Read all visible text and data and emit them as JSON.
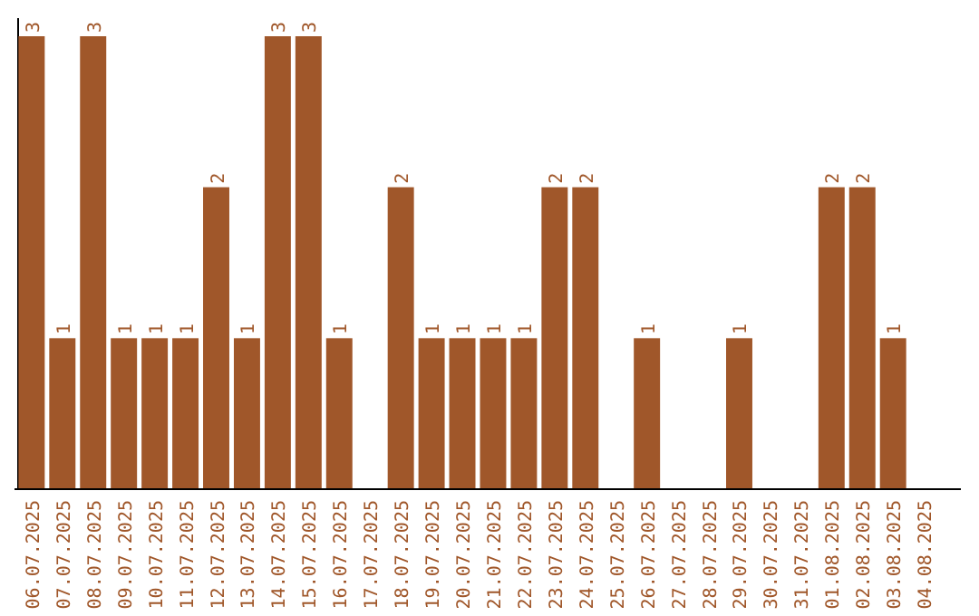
{
  "chart_data": {
    "type": "bar",
    "categories": [
      "06.07.2025",
      "07.07.2025",
      "08.07.2025",
      "09.07.2025",
      "10.07.2025",
      "11.07.2025",
      "12.07.2025",
      "13.07.2025",
      "14.07.2025",
      "15.07.2025",
      "16.07.2025",
      "17.07.2025",
      "18.07.2025",
      "19.07.2025",
      "20.07.2025",
      "21.07.2025",
      "22.07.2025",
      "23.07.2025",
      "24.07.2025",
      "25.07.2025",
      "26.07.2025",
      "27.07.2025",
      "28.07.2025",
      "29.07.2025",
      "30.07.2025",
      "31.07.2025",
      "01.08.2025",
      "02.08.2025",
      "03.08.2025",
      "04.08.2025"
    ],
    "values": [
      3,
      1,
      3,
      1,
      1,
      1,
      2,
      1,
      3,
      3,
      1,
      0,
      2,
      1,
      1,
      1,
      1,
      2,
      2,
      0,
      1,
      0,
      0,
      1,
      0,
      0,
      2,
      2,
      1,
      0
    ],
    "value_labels": [
      "3",
      "1",
      "3",
      "1",
      "1",
      "1",
      "2",
      "1",
      "3",
      "3",
      "1",
      null,
      "2",
      "1",
      "1",
      "1",
      "1",
      "2",
      "2",
      null,
      "1",
      null,
      null,
      "1",
      null,
      null,
      "2",
      "2",
      "1",
      null
    ],
    "color": "#a0572a"
  }
}
